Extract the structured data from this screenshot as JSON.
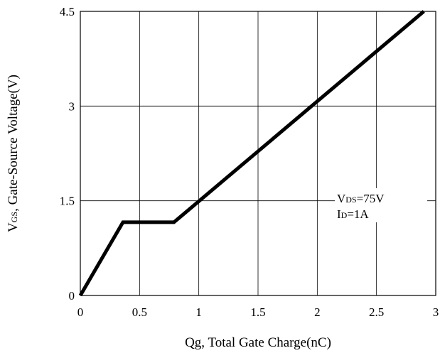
{
  "chart_data": {
    "type": "line",
    "title": "",
    "xlabel": "Qg, Total Gate Charge(nC)",
    "ylabel_prefix": "V",
    "ylabel_sub": "GS",
    "ylabel_rest": ", Gate-Source Voltage(V)",
    "xlim": [
      0,
      3
    ],
    "ylim": [
      0,
      4.5
    ],
    "x_ticks": [
      0,
      0.5,
      1,
      1.5,
      2,
      2.5,
      3
    ],
    "x_tick_labels": [
      "0",
      "0.5",
      "1",
      "1.5",
      "2",
      "2.5",
      "3"
    ],
    "y_ticks": [
      0,
      1.5,
      3,
      4.5
    ],
    "y_tick_labels": [
      "0",
      "1.5",
      "3",
      "4.5"
    ],
    "grid": true,
    "series": [
      {
        "x": [
          0,
          0.36,
          0.79,
          2.9
        ],
        "y": [
          0,
          1.16,
          1.16,
          4.5
        ]
      }
    ],
    "annotation": {
      "line1_prefix": "V",
      "line1_sub": "DS",
      "line1_rest": "=75V",
      "line2_prefix": "I",
      "line2_sub": "D",
      "line2_rest": "=1A"
    },
    "colors": {
      "line": "#000000",
      "grid": "#000000",
      "background": "#ffffff"
    }
  }
}
